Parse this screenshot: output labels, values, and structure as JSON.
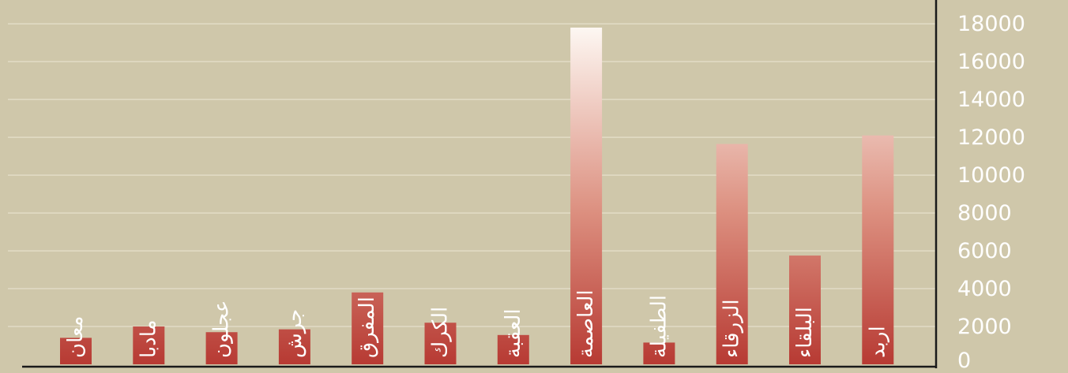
{
  "colors": {
    "background": "#cfc7aa",
    "bar_top": "#fdf7f2",
    "bar_bottom": "#b73a33",
    "grid": "#e2dcc6",
    "axis": "#1a1a1a",
    "text": "#ffffff"
  },
  "chart_data": {
    "type": "bar",
    "categories": [
      "معان",
      "مادبا",
      "عجلون",
      "جرش",
      "المفرق",
      "الكرك",
      "العقبة",
      "العاصمة",
      "الطفيلة",
      "الزرقاء",
      "البلقاء",
      "اربد"
    ],
    "values": [
      1400,
      2000,
      1700,
      1850,
      3800,
      2200,
      1550,
      17800,
      1150,
      11650,
      5750,
      12100
    ],
    "ylim": [
      0,
      18000
    ],
    "yticks": [
      "0",
      "2000",
      "4000",
      "6000",
      "8000",
      "10000",
      "12000",
      "14000",
      "16000",
      "18000"
    ],
    "y_axis_side": "right",
    "grid": true,
    "category_label_orientation": "vertical, inside bars"
  }
}
